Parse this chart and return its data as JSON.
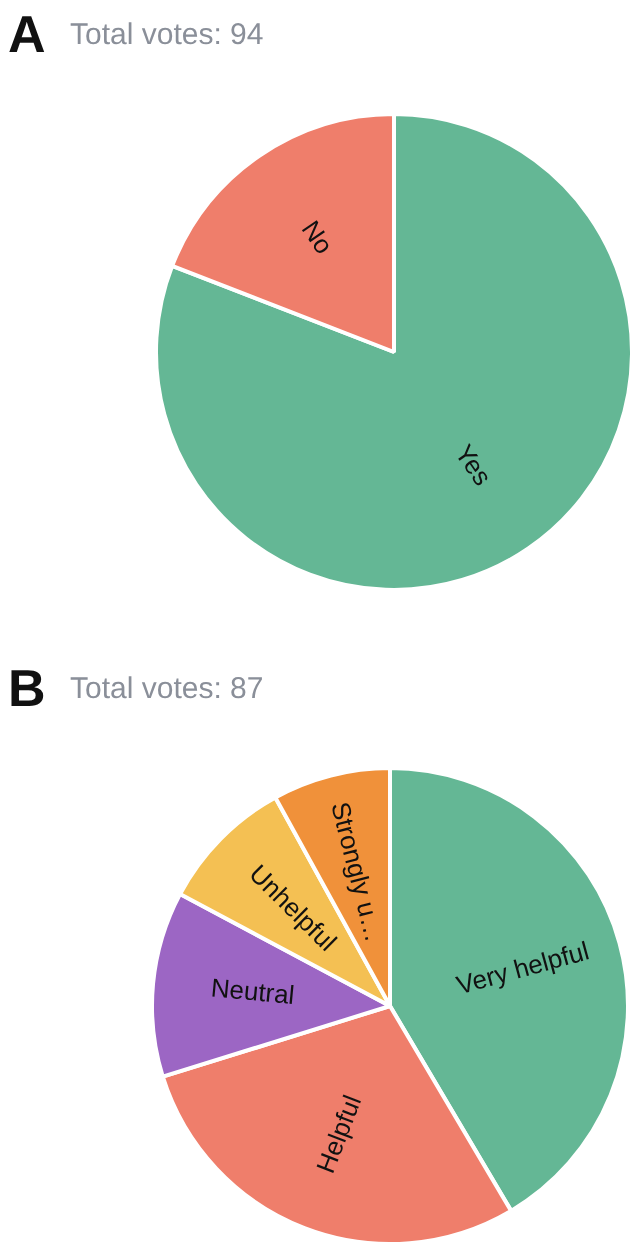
{
  "chart_data": [
    {
      "type": "pie",
      "title": "Total votes: 94",
      "annotations": [
        "A"
      ],
      "categories": [
        "Yes",
        "No"
      ],
      "values": [
        80.9,
        19.1
      ],
      "colors": [
        "#64b795",
        "#ef7e6b"
      ],
      "legend": false
    },
    {
      "type": "pie",
      "title": "Total votes: 87",
      "annotations": [
        "B"
      ],
      "categories": [
        "Very helpful",
        "Helpful",
        "Neutral",
        "Unhelpful",
        "Strongly u…"
      ],
      "values": [
        41.5,
        28.7,
        12.6,
        9.2,
        8.0
      ],
      "colors": [
        "#64b795",
        "#ef7e6b",
        "#9c66c4",
        "#f4c053",
        "#f0913a"
      ],
      "legend": false
    }
  ]
}
